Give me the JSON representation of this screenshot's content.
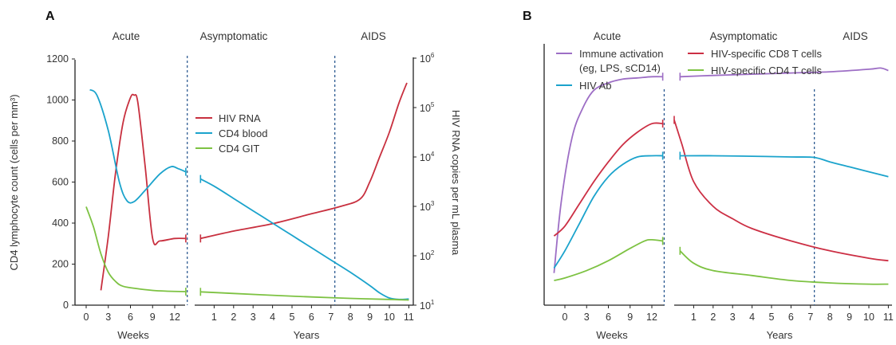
{
  "chart_data": [
    {
      "type": "line",
      "panel_label": "A",
      "phases": [
        "Acute",
        "Asymptomatic",
        "AIDS"
      ],
      "weeks_axis": {
        "label": "Weeks",
        "ticks": [
          "0",
          "3",
          "6",
          "9",
          "12"
        ]
      },
      "years_axis": {
        "label": "Years",
        "ticks": [
          "1",
          "2",
          "3",
          "4",
          "5",
          "6",
          "7",
          "8",
          "9",
          "10",
          "11"
        ]
      },
      "y_left": {
        "label": "CD4 lymphocyte count (cells per mm³)",
        "ticks": [
          "0",
          "200",
          "400",
          "600",
          "800",
          "1000",
          "1200"
        ],
        "ylim": [
          0,
          1200
        ]
      },
      "y_right": {
        "label": "HIV RNA copies per mL plasma",
        "scale": "log",
        "base": "10",
        "exponents": [
          "1",
          "2",
          "3",
          "4",
          "5",
          "6"
        ]
      },
      "series": [
        {
          "name": "HIV RNA",
          "color": "#c8303f",
          "axis": "right",
          "weeks": {
            "x": [
              2,
              3,
              4,
              5,
              6,
              6.5,
              7,
              8,
              9,
              10,
              12,
              13.5
            ],
            "y": [
              1.3,
              2.4,
              3.7,
              4.7,
              5.2,
              5.25,
              5.1,
              3.8,
              2.35,
              2.3,
              2.35,
              2.35
            ]
          },
          "years": {
            "x": [
              0.3,
              2,
              4,
              6,
              7.5,
              8.5,
              9,
              9.5,
              10,
              10.5,
              10.9
            ],
            "y": [
              2.35,
              2.5,
              2.65,
              2.85,
              3.0,
              3.15,
              3.5,
              4.0,
              4.5,
              5.1,
              5.5
            ]
          }
        },
        {
          "name": "CD4 blood",
          "color": "#1ba3cc",
          "axis": "left",
          "weeks": {
            "x": [
              0.5,
              1.5,
              3,
              4.5,
              5.5,
              6.5,
              8,
              10,
              11.5,
              12.5,
              13.5
            ],
            "y": [
              1050,
              1020,
              850,
              600,
              510,
              505,
              560,
              640,
              675,
              665,
              650
            ]
          },
          "years": {
            "x": [
              0.3,
              1,
              2,
              3,
              4,
              5,
              6,
              7,
              8,
              9,
              9.5,
              10,
              10.5,
              11
            ],
            "y": [
              615,
              580,
              520,
              460,
              400,
              340,
              280,
              220,
              160,
              95,
              60,
              35,
              28,
              30
            ]
          }
        },
        {
          "name": "CD4 GIT",
          "color": "#7dc242",
          "axis": "left",
          "weeks": {
            "x": [
              0,
              1,
              2,
              3,
              4,
              5,
              7,
              9,
              11,
              13.5
            ],
            "y": [
              480,
              380,
              250,
              160,
              115,
              92,
              80,
              72,
              68,
              66
            ]
          },
          "years": {
            "x": [
              0.3,
              2,
              4,
              6,
              8,
              10,
              11
            ],
            "y": [
              65,
              57,
              48,
              40,
              33,
              28,
              25
            ]
          }
        }
      ],
      "vlines": {
        "weeks": [
          13.7
        ],
        "years": [
          7.2
        ]
      },
      "legend_position": "top-center"
    },
    {
      "type": "line",
      "panel_label": "B",
      "phases": [
        "Acute",
        "Asymptomatic",
        "AIDS"
      ],
      "weeks_axis": {
        "label": "Weeks",
        "ticks": [
          "0",
          "3",
          "6",
          "9",
          "12"
        ]
      },
      "years_axis": {
        "label": "Years",
        "ticks": [
          "1",
          "2",
          "3",
          "4",
          "5",
          "6",
          "7",
          "8",
          "9",
          "10",
          "11"
        ]
      },
      "series": [
        {
          "name": "Immune activation (eg, LPS, sCD14)",
          "legend_lines": [
            "Immune activation",
            "(eg, LPS, sCD14)"
          ],
          "color": "#9d6ec5",
          "weeks": {
            "x": [
              -1.5,
              -0.5,
              1,
              2.5,
              4,
              6,
              8,
              10,
              12,
              13.5
            ],
            "y": [
              0.13,
              0.42,
              0.68,
              0.8,
              0.87,
              0.9,
              0.915,
              0.92,
              0.925,
              0.925
            ]
          },
          "years": {
            "x": [
              0.3,
              2,
              4,
              6,
              8,
              10,
              10.6,
              11
            ],
            "y": [
              0.925,
              0.93,
              0.935,
              0.94,
              0.945,
              0.955,
              0.96,
              0.95
            ]
          }
        },
        {
          "name": "HIV-specific CD8 T cells",
          "color": "#cc2f44",
          "weeks": {
            "x": [
              -1.5,
              0,
              2,
              4,
              6,
              8,
              10,
              12,
              13.5
            ],
            "y": [
              0.28,
              0.32,
              0.41,
              0.5,
              0.58,
              0.65,
              0.7,
              0.735,
              0.735
            ]
          },
          "years": {
            "x": [
              0,
              0.4,
              1,
              2,
              3,
              4,
              6,
              8,
              10,
              11
            ],
            "y": [
              0.75,
              0.65,
              0.5,
              0.4,
              0.35,
              0.31,
              0.26,
              0.22,
              0.19,
              0.18
            ]
          }
        },
        {
          "name": "HIV-specific CD4 T cells",
          "color": "#7dc242",
          "weeks": {
            "x": [
              -1.5,
              0,
              3,
              6,
              9,
              11,
              12,
              13.5
            ],
            "y": [
              0.1,
              0.11,
              0.14,
              0.18,
              0.23,
              0.26,
              0.265,
              0.26
            ]
          },
          "years": {
            "x": [
              0.3,
              1,
              2,
              4,
              6,
              8,
              10,
              11
            ],
            "y": [
              0.22,
              0.17,
              0.14,
              0.12,
              0.1,
              0.09,
              0.085,
              0.085
            ]
          }
        },
        {
          "name": "HIV Ab",
          "color": "#1ba3cc",
          "weeks": {
            "x": [
              -1.5,
              0,
              2,
              4,
              6,
              8,
              10,
              12,
              13.5
            ],
            "y": [
              0.15,
              0.22,
              0.33,
              0.44,
              0.52,
              0.57,
              0.6,
              0.605,
              0.605
            ]
          },
          "years": {
            "x": [
              0.3,
              2,
              4,
              6,
              7.2,
              8,
              9,
              10,
              11
            ],
            "y": [
              0.605,
              0.605,
              0.603,
              0.6,
              0.598,
              0.58,
              0.56,
              0.54,
              0.52
            ]
          }
        }
      ],
      "vlines": {
        "weeks": [
          13.7
        ],
        "years": [
          7.2
        ]
      },
      "legend_position": "top"
    }
  ]
}
